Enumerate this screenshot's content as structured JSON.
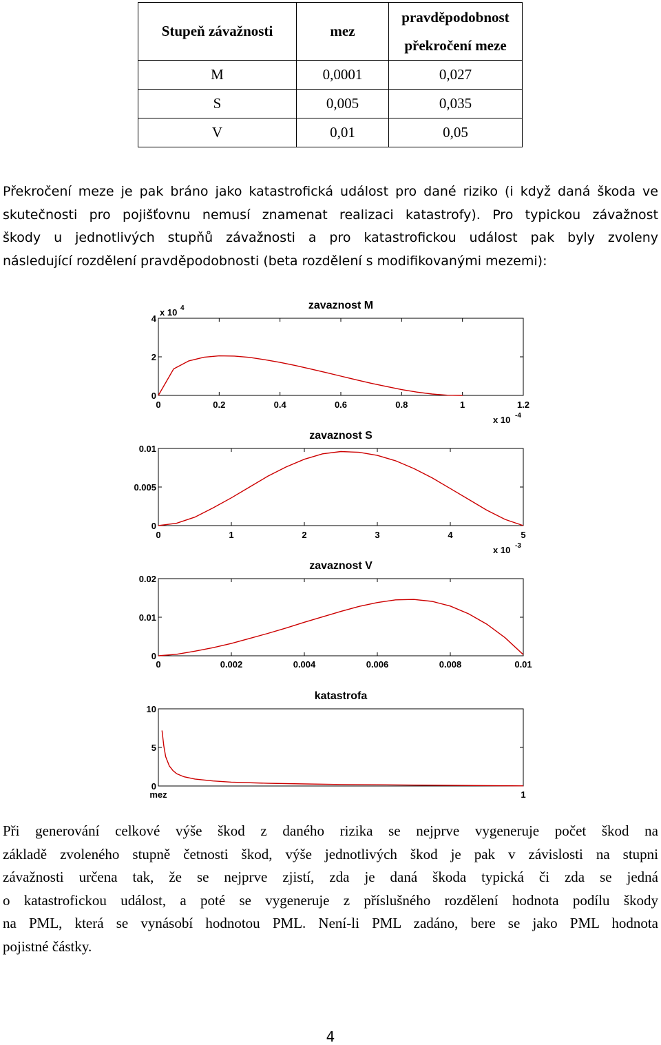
{
  "table": {
    "headers": [
      "Stupeň závažnosti",
      "mez",
      "pravděpodobnost překročení meze"
    ],
    "header_third_lines": [
      "pravděpodobnost",
      "překročení meze"
    ],
    "rows": [
      [
        "M",
        "0,0001",
        "0,027"
      ],
      [
        "S",
        "0,005",
        "0,035"
      ],
      [
        "V",
        "0,01",
        "0,05"
      ]
    ]
  },
  "paragraph1": {
    "lines": [
      "Překročení meze je pak bráno jako katastrofická událost pro dané riziko (i když daná škoda ve",
      "skutečnosti pro pojišťovnu nemusí znamenat realizaci katastrofy). Pro typickou závažnost",
      "škody u jednotlivých stupňů závažnosti a pro katastrofickou událost pak byly zvoleny",
      "následující rozdělení pravděpodobnosti (beta rozdělení s modifikovanými mezemi):"
    ]
  },
  "paragraph2": {
    "lines": [
      "Při generování celkové výše škod z daného rizika se nejprve vygeneruje počet škod na",
      "základě zvoleného stupně četnosti škod, výše jednotlivých škod je pak v závislosti na stupni",
      "závažnosti určena tak, že se nejprve zjistí, zda je daná škoda typická či zda se jedná",
      "o katastrofickou událost, a poté se vygeneruje z příslušného rozdělení hodnota podílu škody",
      "na PML, která se vynásobí hodnotou PML. Není-li PML zadáno, bere se jako PML hodnota",
      "pojistné částky."
    ]
  },
  "page_number": "4",
  "chart_data": [
    {
      "type": "line",
      "title": "zavaznost M",
      "x_ticks": [
        "0",
        "0.2",
        "0.4",
        "0.6",
        "0.8",
        "1",
        "1.2"
      ],
      "x_range": [
        0,
        1.2
      ],
      "x_multiplier": "x 10",
      "x_multiplier_exp": "-4",
      "y_ticks": [
        "0",
        "2",
        "4"
      ],
      "y_range": [
        0,
        4
      ],
      "y_multiplier": "x 10",
      "y_multiplier_exp": "4",
      "color": "#cc0000",
      "series": [
        {
          "x": [
            0,
            0.05,
            0.1,
            0.15,
            0.2,
            0.25,
            0.3,
            0.35,
            0.4,
            0.45,
            0.5,
            0.55,
            0.6,
            0.65,
            0.7,
            0.75,
            0.8,
            0.85,
            0.9,
            0.95,
            1.0
          ],
          "values": [
            0,
            1.37,
            1.79,
            1.98,
            2.05,
            2.04,
            1.97,
            1.85,
            1.71,
            1.55,
            1.37,
            1.19,
            1.0,
            0.81,
            0.63,
            0.46,
            0.3,
            0.17,
            0.07,
            0.01,
            0
          ]
        }
      ]
    },
    {
      "type": "line",
      "title": "zavaznost S",
      "x_ticks": [
        "0",
        "1",
        "2",
        "3",
        "4",
        "5"
      ],
      "x_range": [
        0,
        5
      ],
      "x_multiplier": "x 10",
      "x_multiplier_exp": "-3",
      "y_ticks": [
        "0",
        "0.005",
        "0.01"
      ],
      "y_range": [
        0,
        0.01
      ],
      "color": "#cc0000",
      "series": [
        {
          "x": [
            0,
            0.25,
            0.5,
            0.75,
            1,
            1.25,
            1.5,
            1.75,
            2,
            2.25,
            2.5,
            2.75,
            3,
            3.25,
            3.5,
            3.75,
            4,
            4.25,
            4.5,
            4.75,
            5
          ],
          "values": [
            0,
            0.0003,
            0.0011,
            0.0023,
            0.0036,
            0.005,
            0.0064,
            0.0076,
            0.0086,
            0.0093,
            0.0096,
            0.0095,
            0.0091,
            0.0084,
            0.0074,
            0.0062,
            0.0048,
            0.0034,
            0.002,
            0.0008,
            0
          ]
        }
      ]
    },
    {
      "type": "line",
      "title": "zavaznost V",
      "x_ticks": [
        "0",
        "0.002",
        "0.004",
        "0.006",
        "0.008",
        "0.01"
      ],
      "x_range": [
        0,
        0.01
      ],
      "y_ticks": [
        "0",
        "0.01",
        "0.02"
      ],
      "y_range": [
        0,
        0.02
      ],
      "color": "#cc0000",
      "series": [
        {
          "x": [
            0,
            0.0005,
            0.001,
            0.0015,
            0.002,
            0.0025,
            0.003,
            0.0035,
            0.004,
            0.0045,
            0.005,
            0.0055,
            0.006,
            0.0065,
            0.007,
            0.0075,
            0.008,
            0.0085,
            0.009,
            0.0095,
            0.01
          ],
          "values": [
            0,
            0.0004,
            0.0012,
            0.0021,
            0.0032,
            0.0045,
            0.0058,
            0.0072,
            0.0087,
            0.0101,
            0.0115,
            0.0128,
            0.0138,
            0.0145,
            0.0146,
            0.0141,
            0.0129,
            0.0109,
            0.0082,
            0.0047,
            0.0003
          ]
        }
      ]
    },
    {
      "type": "line",
      "title": "katastrofa",
      "x_ticks": [
        "mez",
        "1"
      ],
      "x_range": [
        0,
        1
      ],
      "y_ticks": [
        "0",
        "5",
        "10"
      ],
      "y_range": [
        0,
        10
      ],
      "color": "#cc0000",
      "series": [
        {
          "x": [
            0.01,
            0.015,
            0.02,
            0.03,
            0.04,
            0.05,
            0.07,
            0.1,
            0.15,
            0.2,
            0.3,
            0.4,
            0.5,
            0.6,
            0.7,
            0.8,
            0.9,
            1.0
          ],
          "values": [
            7.2,
            5.2,
            3.8,
            2.6,
            2.0,
            1.6,
            1.2,
            0.9,
            0.65,
            0.5,
            0.35,
            0.27,
            0.2,
            0.16,
            0.12,
            0.08,
            0.05,
            0.02
          ]
        }
      ]
    }
  ]
}
